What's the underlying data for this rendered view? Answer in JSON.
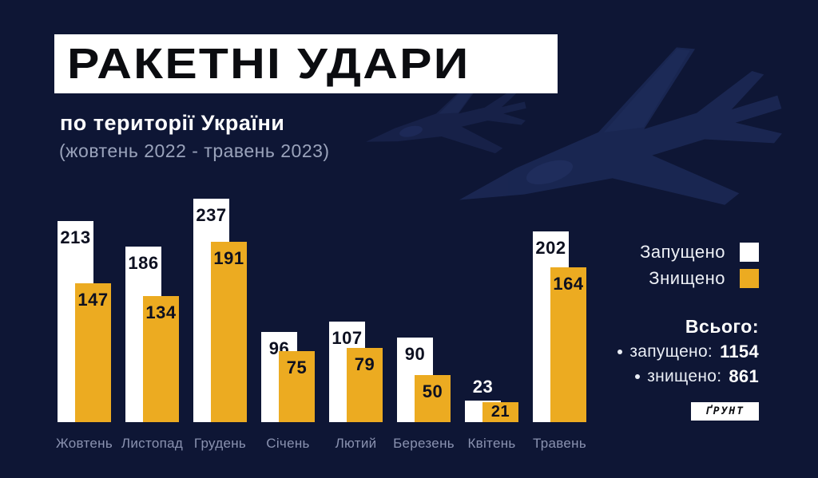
{
  "header": {
    "title": "РАКЕТНІ УДАРИ",
    "subtitle": "по території України",
    "period": "(жовтень 2022 - травень 2023)"
  },
  "legend": {
    "launched_label": "Запущено",
    "destroyed_label": "Знищено"
  },
  "totals": {
    "heading": "Всього:",
    "launched_label": "запущено:",
    "launched_value": "1154",
    "destroyed_label": "знищено:",
    "destroyed_value": "861"
  },
  "logo_text": "ҐРУНТ",
  "colors": {
    "background": "#0e1635",
    "bar_launched": "#ffffff",
    "bar_destroyed": "#ecab21",
    "month_label": "#8a92b0",
    "number_label": "#0d1020"
  },
  "chart_data": {
    "type": "bar",
    "title": "РАКЕТНІ УДАРИ по території України (жовтень 2022 - травень 2023)",
    "categories": [
      "Жовтень",
      "Листопад",
      "Грудень",
      "Січень",
      "Лютий",
      "Березень",
      "Квітень",
      "Травень"
    ],
    "series": [
      {
        "name": "Запущено",
        "color": "#ffffff",
        "values": [
          213,
          186,
          237,
          96,
          107,
          90,
          23,
          202
        ]
      },
      {
        "name": "Знищено",
        "color": "#ecab21",
        "values": [
          147,
          134,
          191,
          75,
          79,
          50,
          21,
          164
        ]
      }
    ],
    "value_labels": true,
    "axis_lines": "none",
    "grid": false,
    "legend_position": "right",
    "ylim": [
      0,
      237
    ],
    "totals": {
      "launched": 1154,
      "destroyed": 861
    }
  }
}
